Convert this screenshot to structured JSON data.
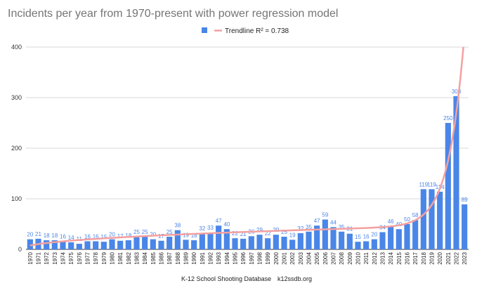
{
  "chart_data": {
    "type": "bar",
    "title": "Incidents per year from 1970-present with power regression model",
    "xlabel": "",
    "ylabel": "",
    "ylim": [
      0,
      400
    ],
    "yticks": [
      0,
      100,
      200,
      300,
      400
    ],
    "grid": true,
    "legend_position": "top",
    "categories": [
      "1970",
      "1971",
      "1972",
      "1973",
      "1974",
      "1975",
      "1976",
      "1977",
      "1978",
      "1979",
      "1980",
      "1981",
      "1982",
      "1983",
      "1984",
      "1985",
      "1986",
      "1987",
      "1988",
      "1989",
      "1990",
      "1991",
      "1992",
      "1993",
      "1994",
      "1995",
      "1996",
      "1997",
      "1998",
      "1999",
      "2000",
      "2001",
      "2002",
      "2003",
      "2004",
      "2005",
      "2006",
      "2007",
      "2008",
      "2009",
      "2010",
      "2011",
      "2012",
      "2013",
      "2014",
      "2015",
      "2016",
      "2017",
      "2018",
      "2019",
      "2020",
      "2021",
      "2022",
      "2023"
    ],
    "series": [
      {
        "name": "",
        "color": "#4a86e8",
        "values": [
          20,
          21,
          18,
          18,
          16,
          14,
          11,
          16,
          16,
          15,
          20,
          17,
          18,
          25,
          25,
          20,
          17,
          25,
          38,
          19,
          18,
          32,
          33,
          47,
          40,
          22,
          21,
          26,
          29,
          22,
          29,
          25,
          19,
          32,
          35,
          47,
          59,
          44,
          35,
          31,
          15,
          16,
          20,
          34,
          46,
          40,
          50,
          58,
          119,
          119,
          114,
          250,
          303,
          89
        ]
      }
    ],
    "trendline": {
      "name": "Trendline R² = 0.738",
      "color": "#f4a0a0",
      "type": "power"
    }
  },
  "footer": {
    "source": "K-12 School Shooting Database",
    "site": "k12ssdb.org"
  }
}
